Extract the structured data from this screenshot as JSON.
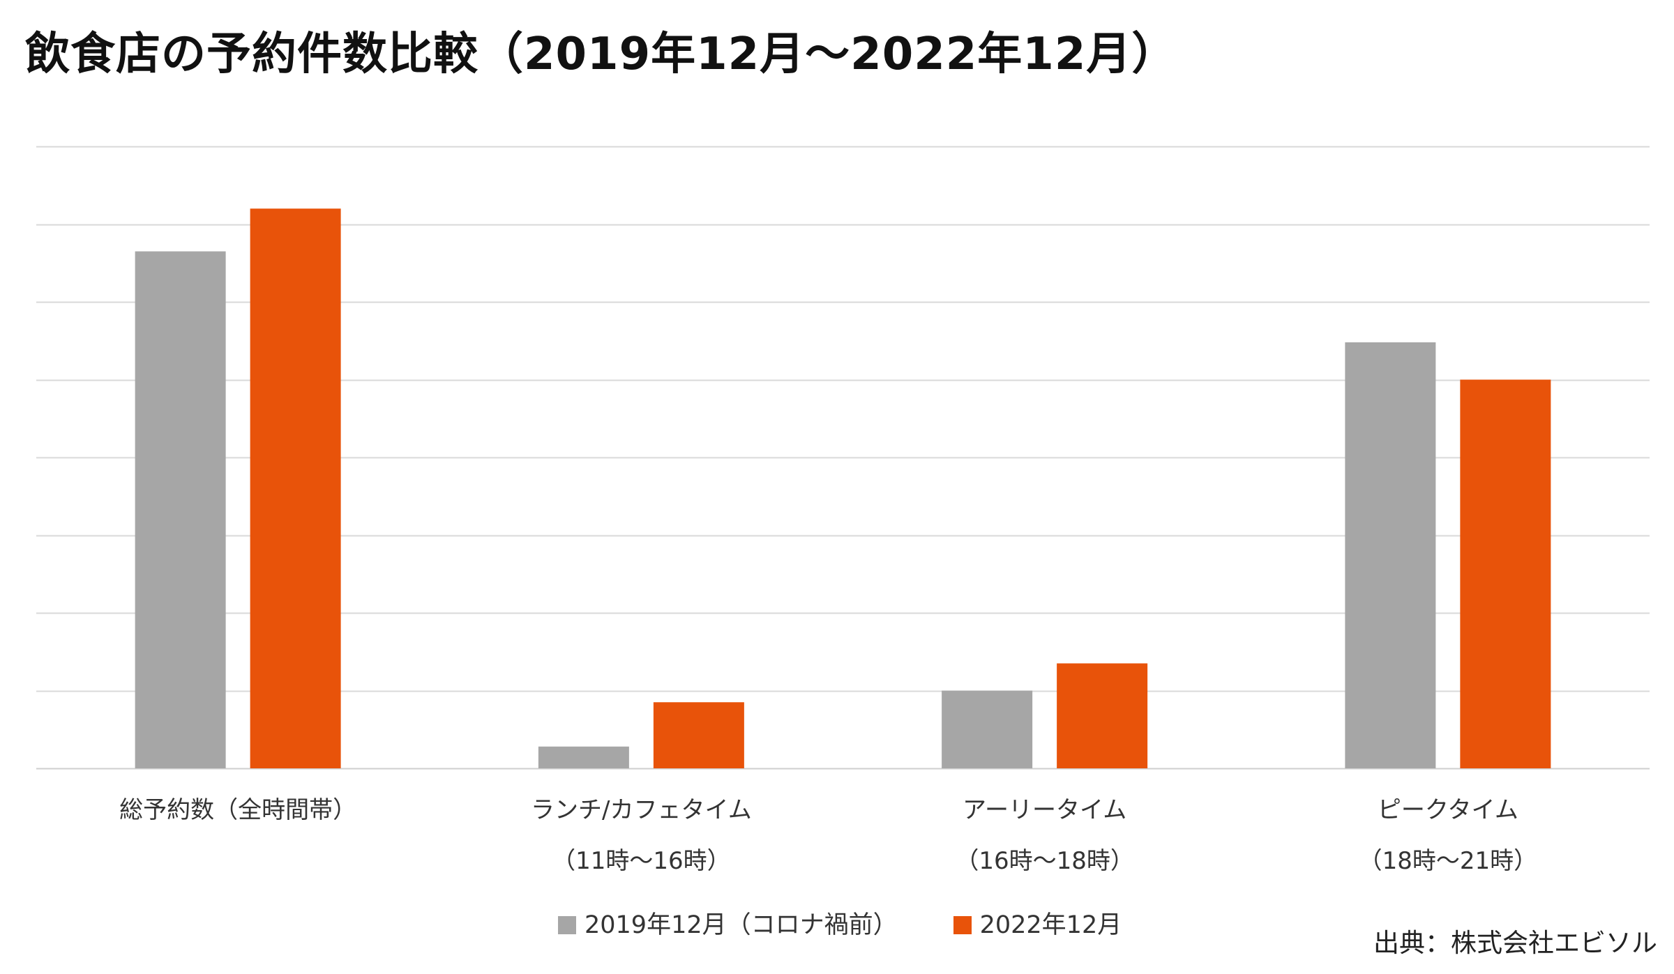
{
  "title": "飲食店の予約件数比較（2019年12月～2022年12月）",
  "source": "出典：株式会社エビソル",
  "colors": {
    "series_2019": "#a6a6a6",
    "series_2022": "#e8530a",
    "grid": "#d9d9d9"
  },
  "chart_data": {
    "type": "bar",
    "categories": [
      [
        "総予約数（全時間帯）"
      ],
      [
        "ランチ/カフェタイム",
        "（11時～16時）"
      ],
      [
        "アーリータイム",
        "（16時～18時）"
      ],
      [
        "ピークタイム",
        "（18時～21時）"
      ]
    ],
    "series": [
      {
        "name": "2019年12月（コロナ禍前）",
        "values": [
          6.65,
          0.28,
          1.0,
          5.48
        ]
      },
      {
        "name": "2022年12月",
        "values": [
          7.2,
          0.85,
          1.35,
          5.0
        ]
      }
    ],
    "ylim": [
      0,
      8
    ],
    "grid": true,
    "y_tick_labels": false,
    "legend_position": "bottom"
  }
}
